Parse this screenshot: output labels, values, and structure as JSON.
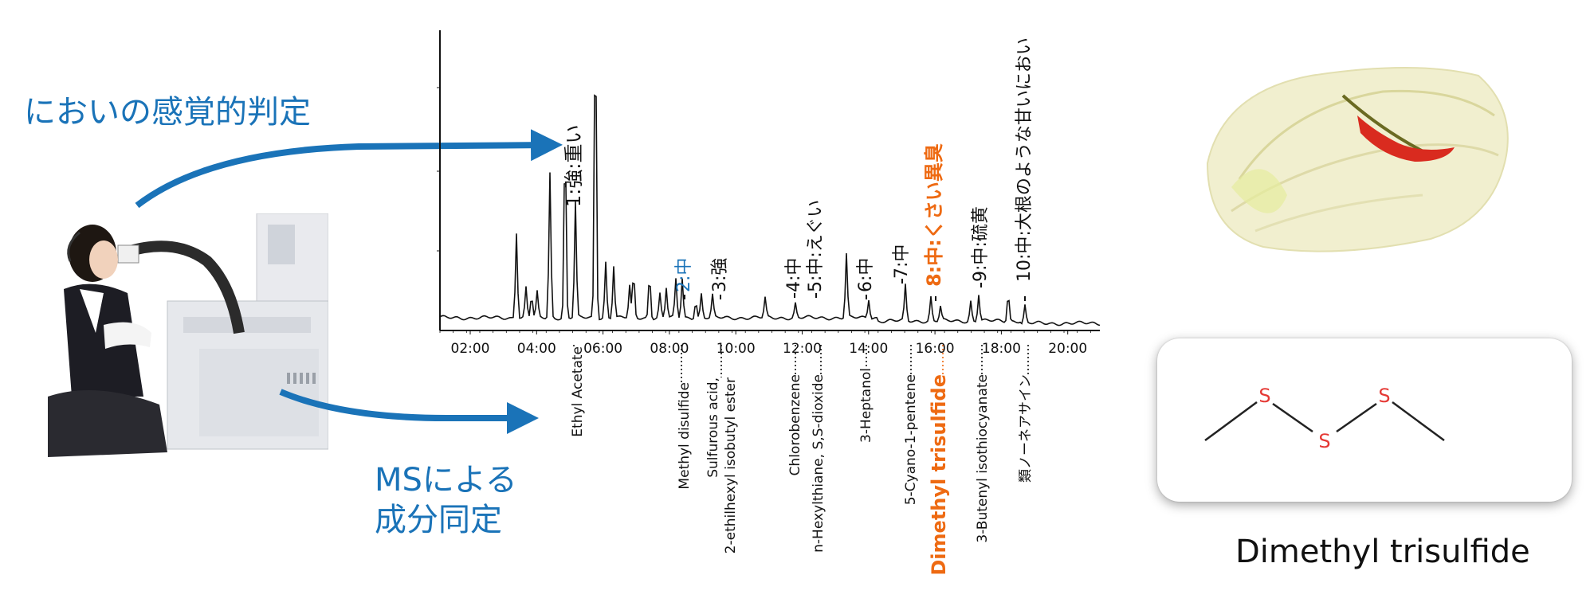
{
  "left_labels": {
    "sensory": "においの感覚的判定",
    "ms_line1": "MSによる",
    "ms_line2": "成分同定"
  },
  "chromatogram": {
    "x_ticks": [
      "02:00",
      "04:00",
      "06:00",
      "08:00",
      "10:00",
      "12:00",
      "14:00",
      "16:00",
      "18:00",
      "20:00"
    ]
  },
  "odor_annotations": [
    {
      "text": "1:強:重い",
      "highlight": "none"
    },
    {
      "text": "2:中",
      "highlight": "blue"
    },
    {
      "text": "3:強",
      "highlight": "none"
    },
    {
      "text": "4:中",
      "highlight": "none"
    },
    {
      "text": "5:中:えぐい",
      "highlight": "none"
    },
    {
      "text": "6:中",
      "highlight": "none"
    },
    {
      "text": "7:中",
      "highlight": "none"
    },
    {
      "text": "8:中:くさい異臭",
      "highlight": "orange"
    },
    {
      "text": "9:中:硫黄",
      "highlight": "none"
    },
    {
      "text": "10:中:大根のような甘いにおい",
      "highlight": "none"
    }
  ],
  "compounds": [
    {
      "lines": [
        "Ethyl Acetate"
      ],
      "highlight": false
    },
    {
      "lines": [
        "Methyl disulfide"
      ],
      "highlight": false
    },
    {
      "lines": [
        "Sulfurous acid,",
        "2-ethilhexyl isobutyl ester"
      ],
      "highlight": false
    },
    {
      "lines": [
        "Chlorobenzene"
      ],
      "highlight": false
    },
    {
      "lines": [
        "n-Hexylthiane, S,S-dioxide"
      ],
      "highlight": false
    },
    {
      "lines": [
        "3-Heptanol"
      ],
      "highlight": false
    },
    {
      "lines": [
        "5-Cyano-1-pentene"
      ],
      "highlight": false
    },
    {
      "lines": [
        "Dimethyl trisulfide"
      ],
      "highlight": true
    },
    {
      "lines": [
        "3-Butenyl isothiocyanate"
      ],
      "highlight": false
    },
    {
      "lines": [
        "類ノーネアサイン"
      ],
      "highlight": false
    }
  ],
  "molecule": {
    "atoms": [
      "S",
      "S",
      "S"
    ],
    "name": "Dimethyl trisulfide"
  },
  "colors": {
    "blue": "#1a73b8",
    "orange": "#ee6a12",
    "sulfur": "#e53935"
  }
}
